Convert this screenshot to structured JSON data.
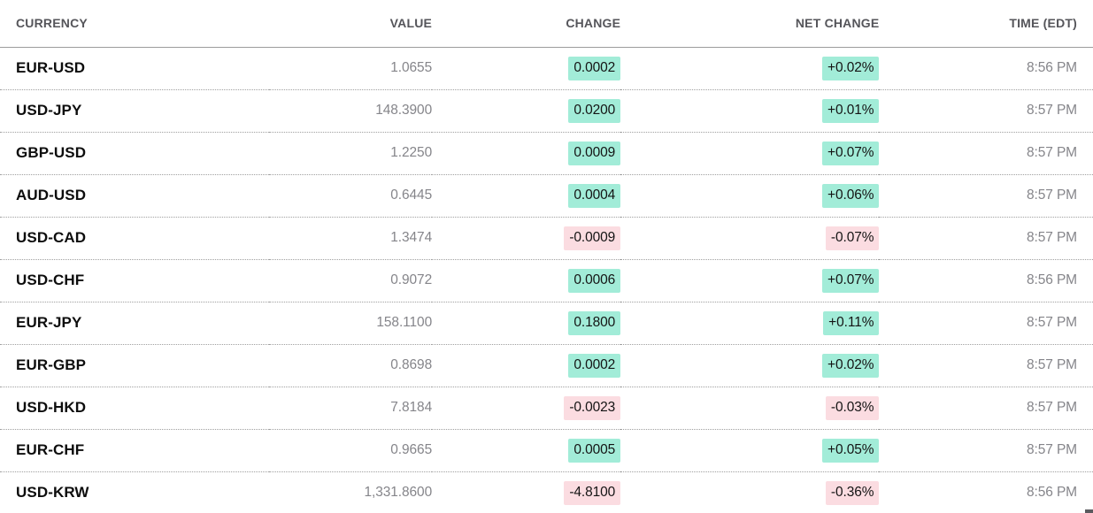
{
  "table": {
    "columns": [
      {
        "label": "CURRENCY",
        "align": "left"
      },
      {
        "label": "VALUE",
        "align": "right"
      },
      {
        "label": "CHANGE",
        "align": "right"
      },
      {
        "label": "NET CHANGE",
        "align": "right"
      },
      {
        "label": "TIME (EDT)",
        "align": "right"
      }
    ],
    "rows": [
      {
        "currency": "EUR-USD",
        "value": "1.0655",
        "change": "0.0002",
        "net_change": "+0.02%",
        "time": "8:56 PM",
        "direction": "up"
      },
      {
        "currency": "USD-JPY",
        "value": "148.3900",
        "change": "0.0200",
        "net_change": "+0.01%",
        "time": "8:57 PM",
        "direction": "up"
      },
      {
        "currency": "GBP-USD",
        "value": "1.2250",
        "change": "0.0009",
        "net_change": "+0.07%",
        "time": "8:57 PM",
        "direction": "up"
      },
      {
        "currency": "AUD-USD",
        "value": "0.6445",
        "change": "0.0004",
        "net_change": "+0.06%",
        "time": "8:57 PM",
        "direction": "up"
      },
      {
        "currency": "USD-CAD",
        "value": "1.3474",
        "change": "-0.0009",
        "net_change": "-0.07%",
        "time": "8:57 PM",
        "direction": "down"
      },
      {
        "currency": "USD-CHF",
        "value": "0.9072",
        "change": "0.0006",
        "net_change": "+0.07%",
        "time": "8:56 PM",
        "direction": "up"
      },
      {
        "currency": "EUR-JPY",
        "value": "158.1100",
        "change": "0.1800",
        "net_change": "+0.11%",
        "time": "8:57 PM",
        "direction": "up"
      },
      {
        "currency": "EUR-GBP",
        "value": "0.8698",
        "change": "0.0002",
        "net_change": "+0.02%",
        "time": "8:57 PM",
        "direction": "up"
      },
      {
        "currency": "USD-HKD",
        "value": "7.8184",
        "change": "-0.0023",
        "net_change": "-0.03%",
        "time": "8:57 PM",
        "direction": "down"
      },
      {
        "currency": "EUR-CHF",
        "value": "0.9665",
        "change": "0.0005",
        "net_change": "+0.05%",
        "time": "8:57 PM",
        "direction": "up"
      },
      {
        "currency": "USD-KRW",
        "value": "1,331.8600",
        "change": "-4.8100",
        "net_change": "-0.36%",
        "time": "8:56 PM",
        "direction": "down"
      }
    ],
    "colors": {
      "positive_bg": "#a2ecd8",
      "negative_bg": "#fbdce1",
      "ticker_text": "#0d0d0d",
      "muted_text": "#85858a",
      "header_text": "#55555a"
    }
  }
}
